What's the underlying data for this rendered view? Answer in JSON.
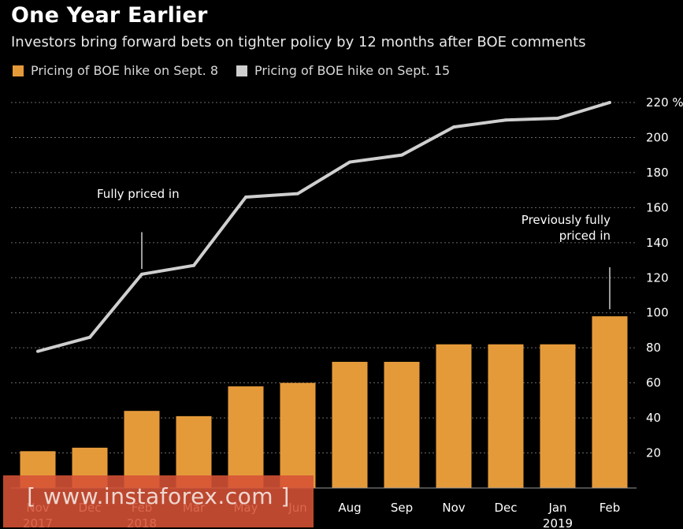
{
  "chart_data": {
    "type": "bar",
    "title": "One Year Earlier",
    "subtitle": "Investors bring forward bets on tighter policy by 12 months after BOE comments",
    "unit": "%",
    "categories": [
      "Nov",
      "Dec",
      "Feb",
      "Mar",
      "May",
      "Jun",
      "Aug",
      "Sep",
      "Nov",
      "Dec",
      "Jan",
      "Feb"
    ],
    "year_labels": [
      {
        "category_index": 0,
        "label": "2017"
      },
      {
        "category_index": 2,
        "label": "2018"
      },
      {
        "category_index": 10,
        "label": "2019"
      }
    ],
    "ylim": [
      0,
      220
    ],
    "yticks": [
      20,
      40,
      60,
      80,
      100,
      120,
      140,
      160,
      180,
      200,
      220
    ],
    "top_tick_label": "220 %",
    "series": [
      {
        "name": "Pricing of BOE hike on Sept. 8",
        "kind": "bar",
        "color": "#e59a3a",
        "values": [
          21,
          23,
          44,
          41,
          58,
          60,
          72,
          72,
          82,
          82,
          82,
          98
        ]
      },
      {
        "name": "Pricing of BOE hike on Sept. 15",
        "kind": "line",
        "color": "#cfcfcf",
        "values": [
          78,
          86,
          122,
          127,
          166,
          168,
          186,
          190,
          206,
          210,
          211,
          220
        ]
      }
    ],
    "annotations": [
      {
        "text": "Fully priced in",
        "category_index": 2,
        "line_from": 125,
        "line_to": 146
      },
      {
        "lines": [
          "Previously fully",
          "priced in"
        ],
        "category_index": 11,
        "line_from": 102,
        "line_to": 126
      }
    ]
  },
  "legend": {
    "items": [
      {
        "label": "Pricing of BOE hike on Sept. 8",
        "color": "#e59a3a"
      },
      {
        "label": "Pricing of BOE hike on Sept. 15",
        "color": "#cfcfcf"
      }
    ]
  },
  "watermark": {
    "text": "[ www.instaforex.com ]"
  }
}
